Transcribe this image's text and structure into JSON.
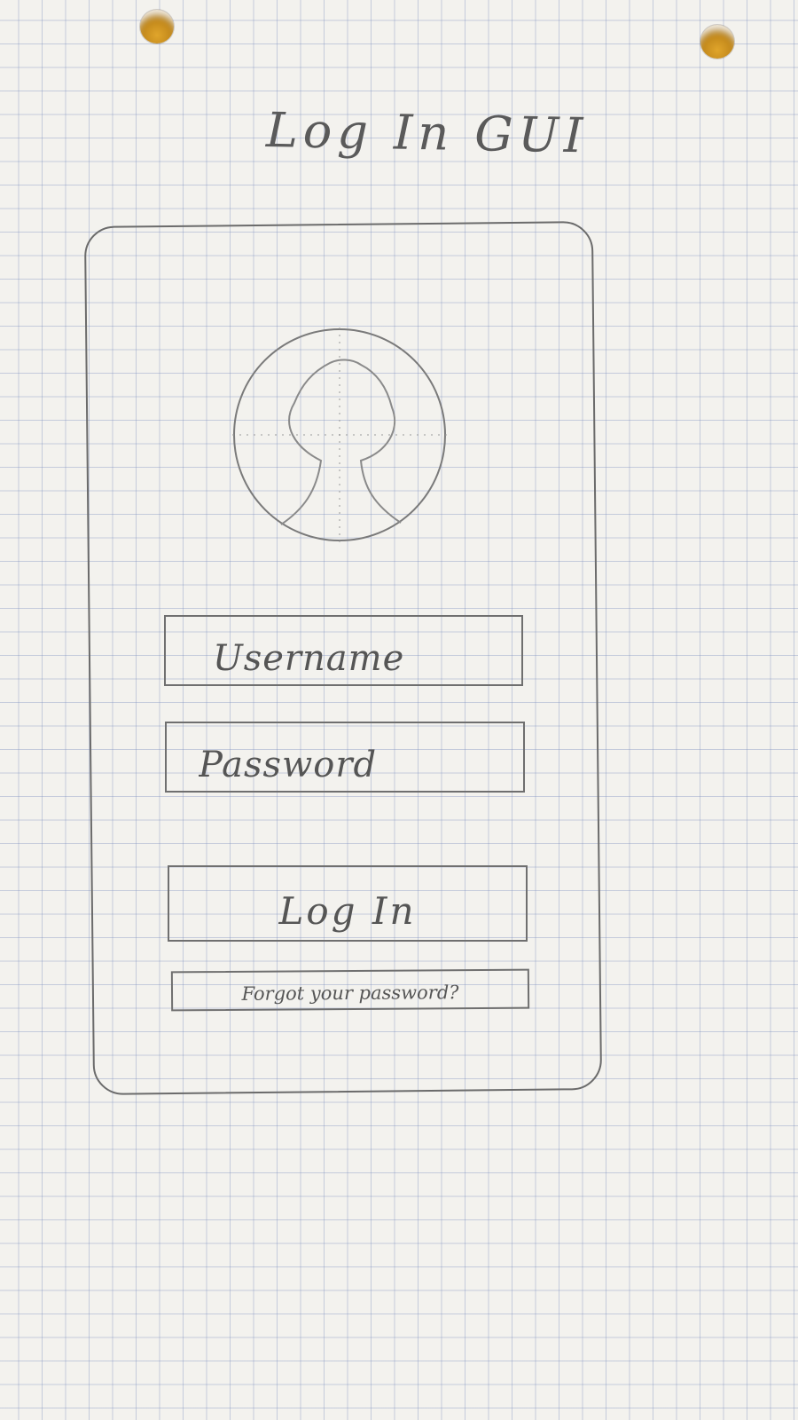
{
  "sketch": {
    "title": "Log In GUI"
  },
  "login_form": {
    "avatar_icon": "user-silhouette-icon",
    "username_placeholder": "Username",
    "password_placeholder": "Password",
    "login_label": "Log In",
    "forgot_label": "Forgot your password?"
  }
}
